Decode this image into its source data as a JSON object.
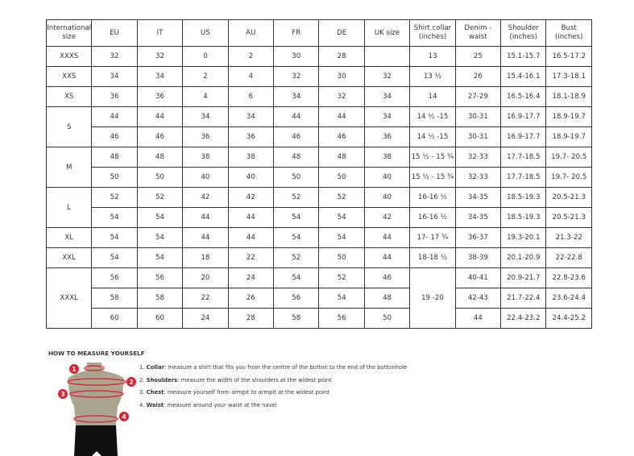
{
  "table": {
    "headers": [
      "International size",
      "EU",
      "IT",
      "US",
      "AU",
      "FR",
      "DE",
      "UK size",
      "Shirt collar (inches)",
      "Denim - waist",
      "Shoulder (inches)",
      "Bust (inches)"
    ],
    "groups": [
      {
        "size": "XXXS",
        "rows": [
          [
            "32",
            "32",
            "0",
            "2",
            "30",
            "28",
            "",
            "13",
            "25",
            "15.1-15.7",
            "16.5-17.2"
          ]
        ]
      },
      {
        "size": "XXS",
        "rows": [
          [
            "34",
            "34",
            "2",
            "4",
            "32",
            "30",
            "32",
            "13 ½",
            "26",
            "15.4-16.1",
            "17.3-18.1"
          ]
        ]
      },
      {
        "size": "XS",
        "rows": [
          [
            "36",
            "36",
            "4",
            "6",
            "34",
            "32",
            "34",
            "14",
            "27-29",
            "16.5-16.4",
            "18.1-18.9"
          ]
        ]
      },
      {
        "size": "S",
        "rows": [
          [
            "44",
            "44",
            "34",
            "34",
            "44",
            "44",
            "34",
            "14 ½ -15",
            "30-31",
            "16.9-17.7",
            "18.9-19.7"
          ],
          [
            "46",
            "46",
            "36",
            "36",
            "46",
            "46",
            "36",
            "14 ½ -15",
            "30-31",
            "16.9-17.7",
            "18.9-19.7"
          ]
        ]
      },
      {
        "size": "M",
        "rows": [
          [
            "48",
            "48",
            "38",
            "38",
            "48",
            "48",
            "38",
            "15 ½ - 15 ¾",
            "32-33",
            "17.7-18.5",
            "19.7- 20.5"
          ],
          [
            "50",
            "50",
            "40",
            "40",
            "50",
            "50",
            "40",
            "15 ½ - 15 ¾",
            "32-33",
            "17.7-18.5",
            "19.7- 20.5"
          ]
        ]
      },
      {
        "size": "L",
        "rows": [
          [
            "52",
            "52",
            "42",
            "42",
            "52",
            "52",
            "40",
            "16-16 ½",
            "34-35",
            "18.5-19.3",
            "20.5-21.3"
          ],
          [
            "54",
            "54",
            "44",
            "44",
            "54",
            "54",
            "42",
            "16-16 ½",
            "34-35",
            "18.5-19.3",
            "20.5-21.3"
          ]
        ]
      },
      {
        "size": "XL",
        "rows": [
          [
            "54",
            "54",
            "44",
            "44",
            "54",
            "54",
            "44",
            "17- 17 ¾",
            "36-37",
            "19.3-20.1",
            "21.3-22"
          ]
        ]
      },
      {
        "size": "XXL",
        "rows": [
          [
            "54",
            "54",
            "18",
            "22",
            "52",
            "50",
            "44",
            "18-18 ½",
            "38-39",
            "20.1-20.9",
            "22-22.8"
          ]
        ]
      },
      {
        "size": "XXXL",
        "collar_merged": "19 -20",
        "rows": [
          [
            "56",
            "56",
            "20",
            "24",
            "54",
            "52",
            "46",
            null,
            "40-41",
            "20.9-21.7",
            "22.8-23.6"
          ],
          [
            "58",
            "58",
            "22",
            "26",
            "56",
            "54",
            "48",
            null,
            "42-43",
            "21.7-22.4",
            "23.6-24.4"
          ],
          [
            "60",
            "60",
            "24",
            "28",
            "58",
            "56",
            "50",
            null,
            "44",
            "22.4-23.2",
            "24.4-25.2"
          ]
        ]
      }
    ]
  },
  "howto": {
    "title": "HOW TO MEASURE YOURSELF",
    "steps": [
      {
        "num": "1.",
        "term": "Collar",
        "text": ": measure a shirt that fits you from the centre of the button to the end of the buttonhole"
      },
      {
        "num": "2.",
        "term": "Shoulders",
        "text": ": measure the width of the shoulders at the widest point"
      },
      {
        "num": "3.",
        "term": "Chest",
        "text": ": measure yourself from armpit to armpit at the widest point"
      },
      {
        "num": "4.",
        "term": "Waist",
        "text": ": measure around your waist at the navel"
      }
    ],
    "markers": [
      "1",
      "2",
      "3",
      "4"
    ],
    "accent": "#e0202e"
  }
}
